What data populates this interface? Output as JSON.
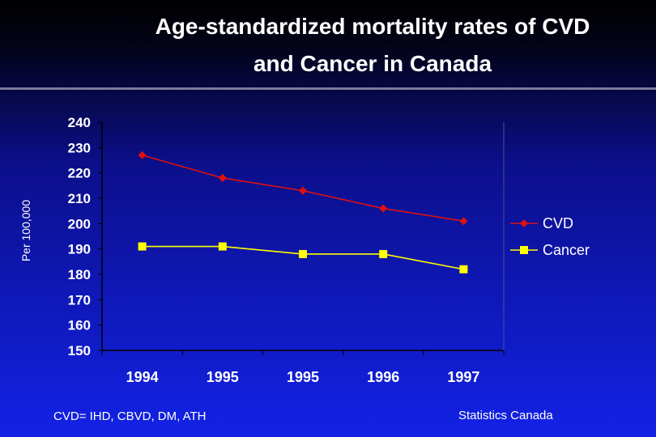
{
  "slide": {
    "title_line1": "Age-standardized mortality rates of CVD",
    "title_line2": "and Cancer in Canada",
    "footnote_left": "CVD= IHD, CBVD, DM, ATH",
    "footnote_right": "Statistics Canada"
  },
  "chart_data": {
    "type": "line",
    "title": "Age-standardized mortality rates of CVD and Cancer in Canada",
    "xlabel": "",
    "ylabel": "Per 100,000",
    "categories": [
      "1994",
      "1995",
      "1995",
      "1996",
      "1997"
    ],
    "ylim": [
      150,
      240
    ],
    "yticks": [
      240,
      230,
      220,
      210,
      200,
      190,
      180,
      170,
      160,
      150
    ],
    "grid": false,
    "legend_position": "right",
    "series": [
      {
        "name": "CVD",
        "values": [
          227,
          218,
          213,
          206,
          201
        ],
        "color": "#e01010",
        "marker": "diamond"
      },
      {
        "name": "Cancer",
        "values": [
          191,
          191,
          188,
          188,
          182
        ],
        "color": "#ffff00",
        "marker": "square"
      }
    ]
  }
}
